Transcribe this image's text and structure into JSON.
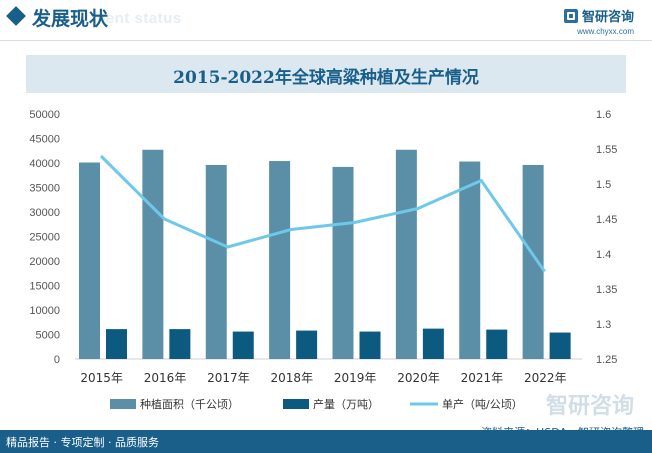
{
  "header": {
    "title": "发展现状",
    "ghost_text": "ment status",
    "brand_name": "智研咨询",
    "brand_url": "www.chyxx.com"
  },
  "watermark_text": "智研咨询",
  "footer": {
    "left_text": "精品报告 · 专项定制 · 品质服务",
    "source_text": "资料来源：USDA、智研咨询整理"
  },
  "colors": {
    "area_bar": "#5b8fa8",
    "production_bar": "#0d5a80",
    "yield_line": "#6ec8ea",
    "title_bg": "#dce8f0",
    "brand": "#1a5f8a"
  },
  "chart_data": {
    "type": "bar",
    "title": "2015-2022年全球高粱种植及生产情况",
    "categories": [
      "2015年",
      "2016年",
      "2017年",
      "2018年",
      "2019年",
      "2020年",
      "2021年",
      "2022年"
    ],
    "series": [
      {
        "name": "种植面积（千公顷）",
        "type": "bar",
        "axis": "left",
        "values": [
          40100,
          42700,
          39600,
          40400,
          39200,
          42700,
          40300,
          39600
        ]
      },
      {
        "name": "产量（万吨）",
        "type": "bar",
        "axis": "left",
        "values": [
          6100,
          6100,
          5600,
          5800,
          5600,
          6200,
          6000,
          5400
        ]
      },
      {
        "name": "单产（吨/公顷）",
        "type": "line",
        "axis": "right",
        "values": [
          1.54,
          1.45,
          1.41,
          1.435,
          1.445,
          1.465,
          1.505,
          1.375
        ]
      }
    ],
    "y_left": {
      "min": 0,
      "max": 50000,
      "ticks": [
        "0",
        "5000",
        "10000",
        "15000",
        "20000",
        "25000",
        "30000",
        "35000",
        "40000",
        "45000",
        "50000"
      ]
    },
    "y_right": {
      "min": 1.25,
      "max": 1.6,
      "ticks": [
        "1.25",
        "1.3",
        "1.35",
        "1.4",
        "1.45",
        "1.5",
        "1.55",
        "1.6"
      ]
    },
    "grid": false,
    "legend_position": "bottom"
  }
}
